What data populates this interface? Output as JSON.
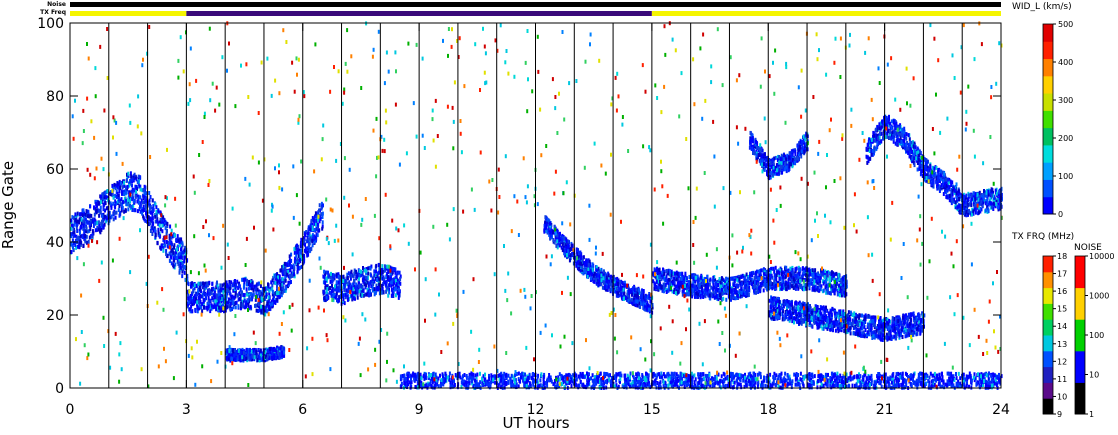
{
  "chart_data": {
    "type": "heatmap",
    "title": "",
    "xlabel": "UT hours",
    "ylabel": "Range Gate",
    "xlim": [
      0,
      24
    ],
    "ylim": [
      0,
      100
    ],
    "grid": true,
    "x_ticks": [
      0,
      3,
      6,
      9,
      12,
      15,
      18,
      21,
      24
    ],
    "y_ticks": [
      0,
      20,
      40,
      60,
      80,
      100
    ],
    "scan_boundaries_hours": [
      1,
      2,
      3,
      4,
      5,
      6,
      7,
      8,
      9,
      10,
      11,
      12,
      13,
      14,
      15,
      16,
      17,
      18,
      19,
      20,
      21,
      22,
      23
    ],
    "strips": {
      "noise_label": "Noise",
      "txfreq_label": "TX Freq",
      "noise_color": "#000000",
      "txfreq_segments": [
        {
          "start": 0,
          "end": 3,
          "color": "#f5f500"
        },
        {
          "start": 3,
          "end": 15,
          "color": "#3a0a7a"
        },
        {
          "start": 15,
          "end": 24,
          "color": "#f5f500"
        }
      ]
    },
    "colorbars": {
      "width": {
        "title": "WID_L (km/s)",
        "ticks": [
          "500",
          "400",
          "300",
          "200",
          "100",
          "0"
        ],
        "colors": [
          "#0000ff",
          "#0050ff",
          "#00a0ff",
          "#00dddd",
          "#00c060",
          "#40e000",
          "#c8e000",
          "#ffd000",
          "#ff8000",
          "#ff2000",
          "#e00000"
        ]
      },
      "tx_freq": {
        "title": "TX FRQ (MHz)",
        "ticks": [
          "18",
          "17",
          "16",
          "15",
          "14",
          "13",
          "12",
          "11",
          "10",
          "9"
        ],
        "colors": [
          "#000000",
          "#5a0a8a",
          "#2020c0",
          "#0050ff",
          "#00c8e0",
          "#00d060",
          "#40e000",
          "#e8e800",
          "#ff9000",
          "#ff2000"
        ]
      },
      "noise": {
        "title": "NOISE",
        "ticks": [
          "10000",
          "1000",
          "100",
          "10",
          "1"
        ],
        "colors": [
          "#000000",
          "#0000ff",
          "#00d000",
          "#ffd000",
          "#ff0000"
        ]
      }
    },
    "series": [
      {
        "kind": "dense-band",
        "x": [
          0,
          0.5,
          1,
          1.5,
          1.8,
          2.2,
          2.5,
          3
        ],
        "y_center": [
          42,
          45,
          50,
          54,
          53,
          45,
          40,
          34
        ],
        "thickness": 10
      },
      {
        "kind": "dense-band",
        "x": [
          3,
          3.5,
          4,
          4.5,
          5,
          5.5,
          6,
          6.5
        ],
        "y_center": [
          25,
          25,
          25,
          26,
          24,
          30,
          38,
          48
        ],
        "thickness": 8
      },
      {
        "kind": "dense-band",
        "x": [
          6.5,
          7,
          7.5,
          8,
          8.5
        ],
        "y_center": [
          28,
          27,
          29,
          30,
          28
        ],
        "thickness": 8
      },
      {
        "kind": "dense-band",
        "x": [
          12.2,
          12.8,
          13.5,
          14,
          15
        ],
        "y_center": [
          45,
          38,
          31,
          28,
          23
        ],
        "thickness": 5
      },
      {
        "kind": "dense-band",
        "x": [
          15,
          16,
          17,
          18,
          19,
          20
        ],
        "y_center": [
          30,
          28,
          27,
          30,
          30,
          28
        ],
        "thickness": 6
      },
      {
        "kind": "dense-band",
        "x": [
          18,
          19,
          20,
          21,
          22
        ],
        "y_center": [
          22,
          20,
          18,
          16,
          18
        ],
        "thickness": 6
      },
      {
        "kind": "dense-band",
        "x": [
          17.5,
          18,
          18.5,
          19
        ],
        "y_center": [
          68,
          60,
          62,
          68
        ],
        "thickness": 5
      },
      {
        "kind": "dense-band",
        "x": [
          20.5,
          21,
          21.5,
          22,
          22.5,
          23,
          24
        ],
        "y_center": [
          64,
          72,
          68,
          60,
          56,
          50,
          52
        ],
        "thickness": 6
      },
      {
        "kind": "dense-band",
        "x": [
          4,
          5,
          5.5
        ],
        "y_center": [
          9,
          9,
          10
        ],
        "thickness": 3
      },
      {
        "kind": "ground-scatter",
        "x": [
          8.5,
          24
        ],
        "y_range": [
          0,
          4
        ]
      }
    ]
  }
}
